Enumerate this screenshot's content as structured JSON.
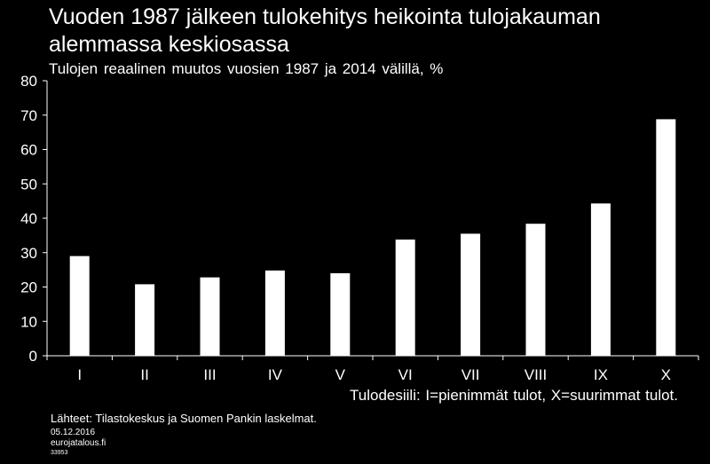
{
  "chart_data": {
    "type": "bar",
    "title": "Vuoden 1987 jälkeen tulokehitys heikointa tulojakauman alemmassa keskiosassa",
    "subtitle": "Tulojen reaalinen muutos vuosien 1987 ja 2014 välillä, %",
    "xlabel": "Tulodesiili: I=pienimmät tulot, X=suurimmat tulot.",
    "ylabel": "",
    "categories": [
      "I",
      "II",
      "III",
      "IV",
      "V",
      "VI",
      "VII",
      "VIII",
      "IX",
      "X"
    ],
    "values": [
      29,
      20.8,
      22.8,
      24.8,
      24,
      33.8,
      35.5,
      38.4,
      44.3,
      68.8
    ],
    "ylim": [
      0,
      80
    ],
    "yticks": [
      "0",
      "10",
      "20",
      "30",
      "40",
      "50",
      "60",
      "70",
      "80"
    ],
    "grid": false,
    "legend": "none",
    "colors": {
      "background": "#000000",
      "bar": "#ffffff",
      "text": "#ffffff"
    }
  },
  "footer": {
    "source": "Lähteet: Tilastokeskus ja Suomen Pankin laskelmat.",
    "date": "05.12.2016",
    "site": "eurojatalous.fi",
    "code": "33953"
  }
}
